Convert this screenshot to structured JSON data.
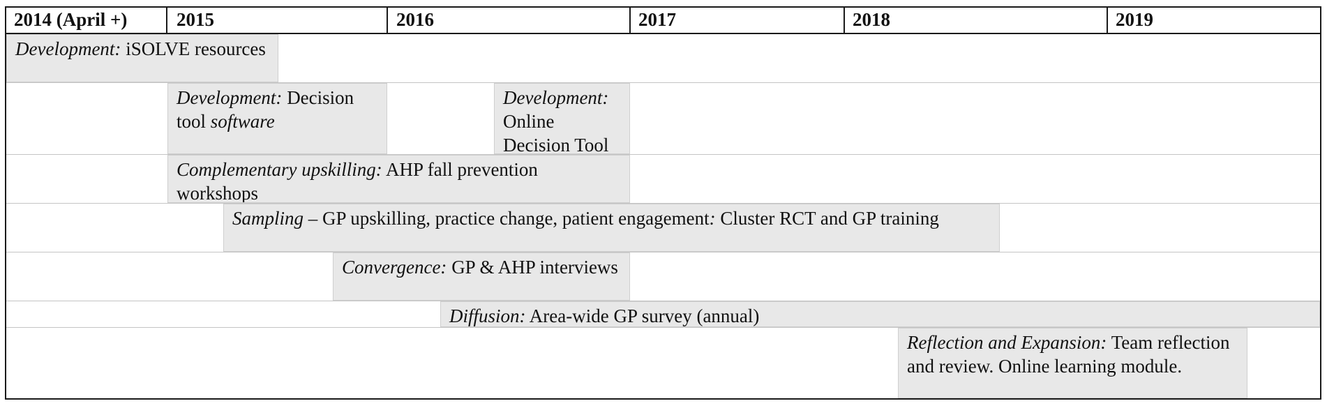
{
  "header": {
    "years": [
      {
        "label": "2014 (April +)"
      },
      {
        "label": "2015"
      },
      {
        "label": "2016"
      },
      {
        "label": "2017"
      },
      {
        "label": "2018"
      },
      {
        "label": "2019"
      }
    ]
  },
  "activities": [
    {
      "stage": "Development:",
      "text": " iSOLVE resources"
    },
    {
      "stage": "Development:",
      "text": " Decision tool ",
      "extra": "software"
    },
    {
      "stage": "Development:",
      "text": " Online Decision Tool"
    },
    {
      "stage": "Complementary upskilling:",
      "text": " AHP fall prevention workshops"
    },
    {
      "stage": "Sampling",
      "text": " – GP upskilling, practice change, patient engagement",
      "extra": ":",
      "text2": " Cluster RCT and GP training"
    },
    {
      "stage": "Convergence:",
      "text": " GP & AHP interviews"
    },
    {
      "stage": "Diffusion:",
      "text": " Area-wide GP survey (annual)"
    },
    {
      "stage": "Reflection and Expansion:",
      "text": " Team reflection and review. Online learning module."
    }
  ]
}
